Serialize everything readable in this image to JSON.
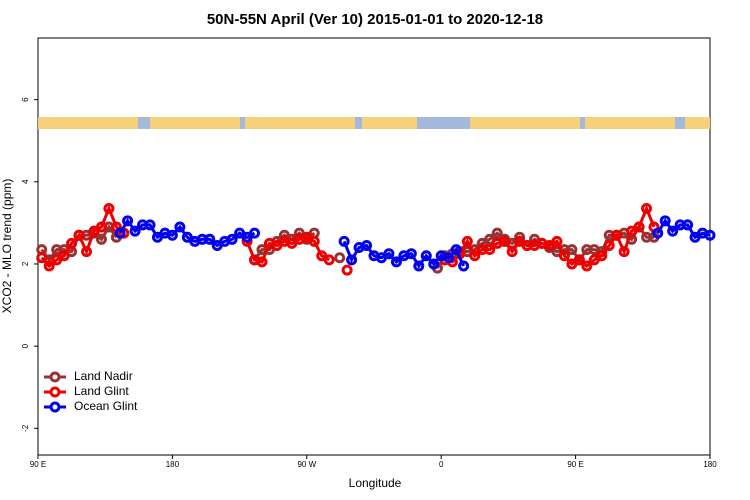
{
  "chart_data": {
    "type": "line",
    "title": "50N-55N April (Ver 10)   2015-01-01 to 2020-12-18",
    "x_label": "Longitude",
    "y_label": "XCO2 - MLO trend (ppm)",
    "xlim": [
      90,
      540
    ],
    "xticks": [
      {
        "value": 90,
        "label": "90 E"
      },
      180,
      {
        "value": 270,
        "label": "90 W"
      },
      {
        "value": 360,
        "label": "0"
      },
      {
        "value": 450,
        "label": "90 E"
      },
      {
        "value": 540,
        "label": "180"
      }
    ],
    "ylim": [
      -2.65,
      7.5
    ],
    "yticks": [
      -2,
      0,
      2,
      4,
      6
    ],
    "legend": "bottom-left",
    "series": [
      {
        "name": "Land Nadir",
        "color": "#993333",
        "x": [
          92.5,
          97.5,
          102.5,
          107.5,
          112.5,
          117.5,
          122.5,
          127.5,
          132.5,
          137.5,
          142.5,
          null,
          235,
          240,
          245,
          250,
          255,
          260,
          265,
          270,
          275,
          null,
          292,
          null,
          357.5,
          362.5,
          367.5,
          372.5,
          377.5,
          382.5,
          387.5,
          392.5,
          397.5,
          402.5,
          407.5,
          412.5,
          417.5,
          422.5,
          427.5,
          432.5,
          437.5,
          442.5,
          447.5,
          452.5,
          457.5,
          462.5,
          467.5,
          472.5,
          477.5,
          482.5,
          487.5,
          492.5,
          497.5,
          502.5
        ],
        "values": [
          2.35,
          2.1,
          2.35,
          2.35,
          2.3,
          2.7,
          2.7,
          2.75,
          2.6,
          2.9,
          2.65,
          null,
          2.1,
          2.35,
          2.35,
          2.55,
          2.7,
          2.6,
          2.75,
          2.6,
          2.75,
          null,
          2.15,
          null,
          1.9,
          2.2,
          2.25,
          2.3,
          2.3,
          2.35,
          2.5,
          2.6,
          2.75,
          2.6,
          2.5,
          2.65,
          2.45,
          2.6,
          2.5,
          2.4,
          2.3,
          2.35,
          2.35,
          2.1,
          2.35,
          2.35,
          2.3,
          2.7,
          2.7,
          2.75,
          2.6,
          2.9,
          2.65,
          2.65
        ]
      },
      {
        "name": "Land Glint",
        "color": "#ee0000",
        "x": [
          92.5,
          97.5,
          102.5,
          107.5,
          112.5,
          117.5,
          122.5,
          127.5,
          132.5,
          137.5,
          142.5,
          147.5,
          null,
          230,
          235,
          240,
          245,
          250,
          255,
          260,
          265,
          270,
          275,
          280,
          285,
          null,
          297,
          null,
          362.5,
          367.5,
          372.5,
          377.5,
          382.5,
          387.5,
          392.5,
          397.5,
          402.5,
          407.5,
          412.5,
          417.5,
          422.5,
          427.5,
          432.5,
          437.5,
          442.5,
          447.5,
          452.5,
          457.5,
          462.5,
          467.5,
          472.5,
          477.5,
          482.5,
          487.5,
          492.5,
          497.5,
          502.5
        ],
        "values": [
          2.15,
          1.95,
          2.1,
          2.2,
          2.5,
          2.7,
          2.3,
          2.8,
          2.9,
          3.35,
          2.9,
          2.75,
          null,
          2.55,
          2.1,
          2.05,
          2.5,
          2.45,
          2.55,
          2.5,
          2.6,
          2.65,
          2.55,
          2.2,
          2.1,
          null,
          1.85,
          null,
          2.1,
          2.05,
          2.25,
          2.55,
          2.2,
          2.35,
          2.35,
          2.5,
          2.55,
          2.3,
          2.55,
          2.45,
          2.45,
          2.5,
          2.45,
          2.55,
          2.2,
          2.0,
          2.1,
          1.95,
          2.1,
          2.2,
          2.45,
          2.7,
          2.3,
          2.8,
          2.9,
          3.35,
          2.9
        ]
      },
      {
        "name": "Ocean Glint",
        "color": "#0000ee",
        "x": [
          145,
          150,
          155,
          160,
          165,
          170,
          175,
          180,
          185,
          190,
          195,
          200,
          205,
          210,
          215,
          220,
          225,
          230,
          235,
          null,
          295,
          300,
          305,
          310,
          315,
          320,
          325,
          330,
          335,
          340,
          345,
          350,
          355,
          360,
          365,
          370,
          375,
          null,
          505,
          510,
          515,
          520,
          525,
          530,
          535,
          540
        ],
        "values": [
          2.75,
          3.05,
          2.8,
          2.95,
          2.95,
          2.65,
          2.75,
          2.7,
          2.9,
          2.65,
          2.55,
          2.6,
          2.6,
          2.45,
          2.55,
          2.6,
          2.75,
          2.65,
          2.75,
          null,
          2.55,
          2.1,
          2.4,
          2.45,
          2.2,
          2.15,
          2.25,
          2.05,
          2.2,
          2.25,
          1.95,
          2.2,
          2.0,
          2.2,
          2.15,
          2.35,
          1.95,
          null,
          2.75,
          3.05,
          2.8,
          2.95,
          2.95,
          2.65,
          2.75,
          2.7
        ]
      }
    ]
  }
}
